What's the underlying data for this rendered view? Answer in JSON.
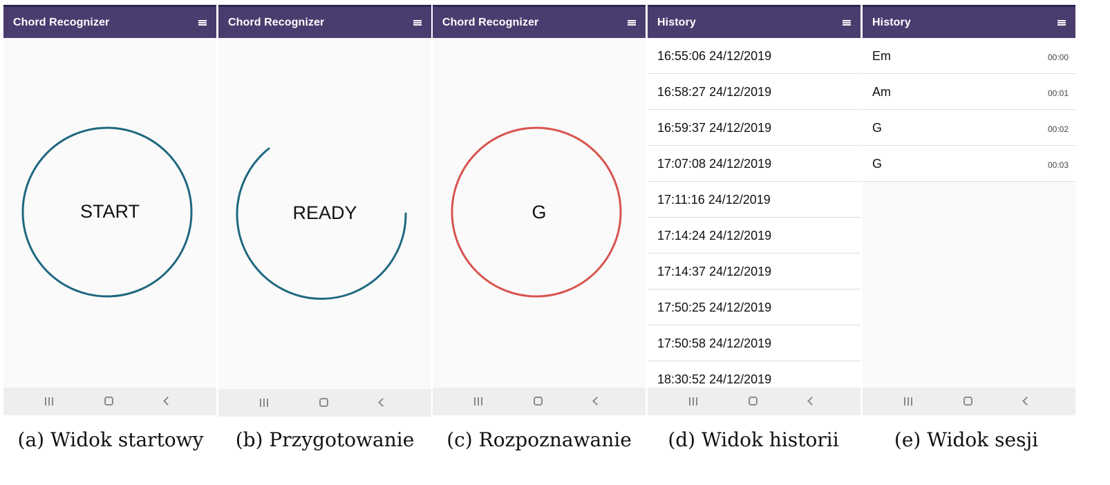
{
  "panels": [
    {
      "app_title": "Chord Recognizer",
      "label": "START"
    },
    {
      "app_title": "Chord Recognizer",
      "label": "READY"
    },
    {
      "app_title": "Chord Recognizer",
      "label": "G",
      "accent": "#d9544f"
    },
    {
      "app_title": "History",
      "items": [
        "16:55:06 24/12/2019",
        "16:58:27 24/12/2019",
        "16:59:37 24/12/2019",
        "17:07:08 24/12/2019",
        "17:11:16 24/12/2019",
        "17:14:24 24/12/2019",
        "17:14:37 24/12/2019",
        "17:50:25 24/12/2019",
        "17:50:58 24/12/2019",
        "18:30:52 24/12/2019"
      ]
    },
    {
      "app_title": "History",
      "items": [
        {
          "chord": "Em",
          "time": "00:00"
        },
        {
          "chord": "Am",
          "time": "00:01"
        },
        {
          "chord": "G",
          "time": "00:02"
        },
        {
          "chord": "G",
          "time": "00:03"
        }
      ]
    }
  ],
  "captions": [
    "(a) Widok startowy",
    "(b) Przygotowanie",
    "(c) Rozpoznawanie",
    "(d) Widok historii",
    "(e) Widok sesji"
  ],
  "colors": {
    "appbar": "#4b3c6f",
    "ring": "#1f6880",
    "ring_active": "#d9544f"
  },
  "icons": [
    "menu-icon",
    "recent-apps-icon",
    "home-icon",
    "back-icon"
  ]
}
